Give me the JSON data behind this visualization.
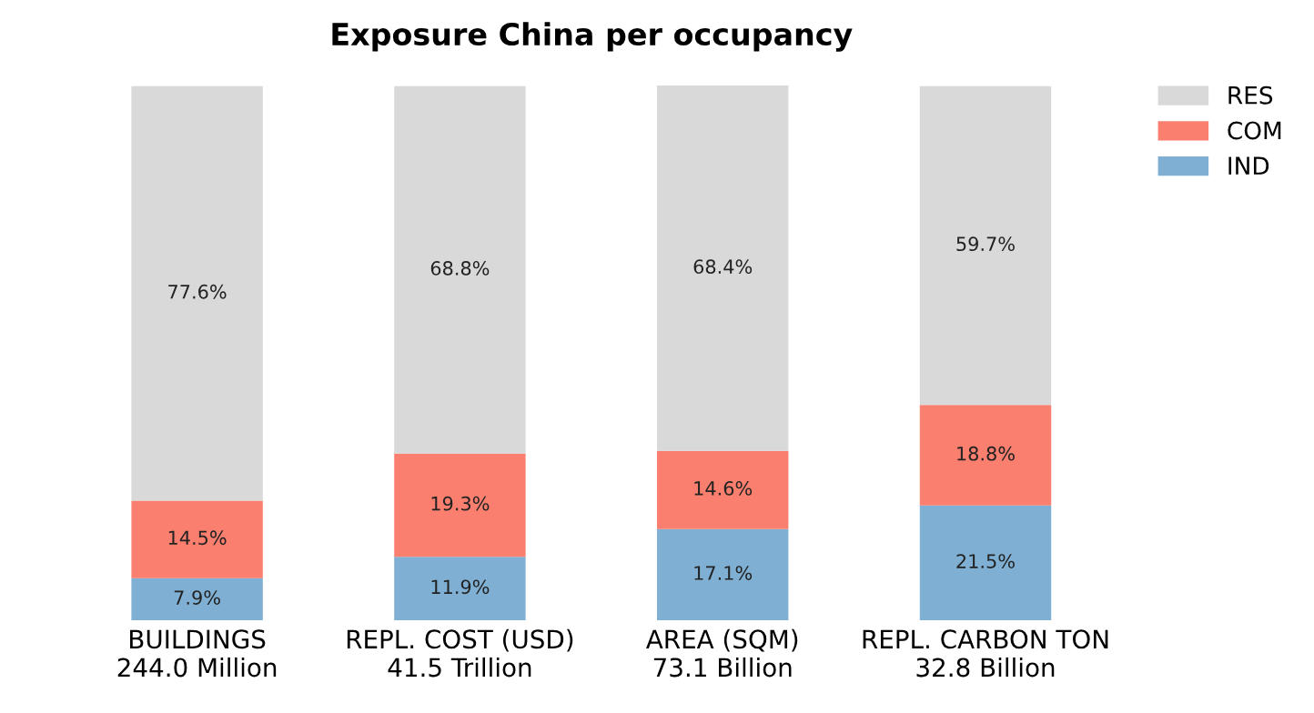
{
  "chart_data": {
    "type": "bar",
    "stacked": true,
    "title": "Exposure China per occupancy",
    "categories": [
      "BUILDINGS\n244.0 Million",
      "REPL. COST (USD)\n41.5 Trillion",
      "AREA (SQM)\n73.1 Billion",
      "REPL. CARBON TON\n32.8 Billion"
    ],
    "series": [
      {
        "name": "IND",
        "color": "#7fafd3",
        "values": [
          7.9,
          11.9,
          17.1,
          21.5
        ],
        "value_labels": [
          "7.9%",
          "11.9%",
          "17.1%",
          "21.5%"
        ]
      },
      {
        "name": "COM",
        "color": "#fa7f6f",
        "values": [
          14.5,
          19.3,
          14.6,
          18.8
        ],
        "value_labels": [
          "14.5%",
          "19.3%",
          "14.6%",
          "18.8%"
        ]
      },
      {
        "name": "RES",
        "color": "#d9d9d9",
        "values": [
          77.6,
          68.8,
          68.4,
          59.7
        ],
        "value_labels": [
          "77.6%",
          "68.8%",
          "68.4%",
          "59.7%"
        ]
      }
    ],
    "legend": "top right",
    "grid": false
  }
}
